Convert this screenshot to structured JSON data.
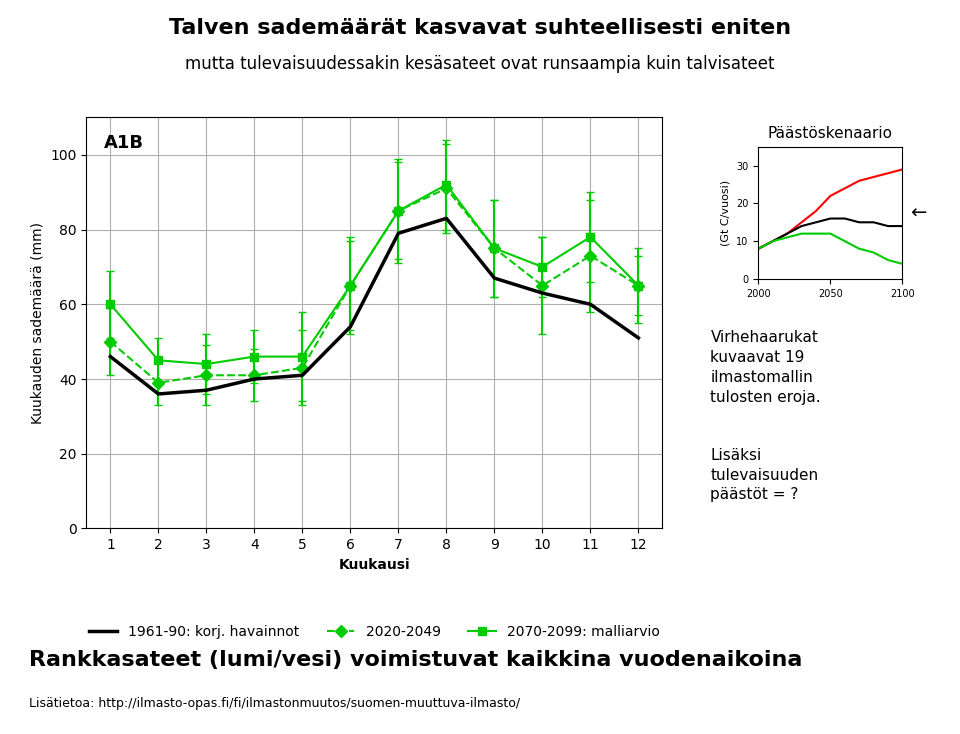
{
  "chart_data": [
    {
      "type": "line",
      "title": "Talven sademäärät kasvavat suhteellisesti eniten",
      "subtitle": "mutta tulevaisuudessakin kesäsateet ovat runsaampia kuin talvisateet",
      "x_label": "Kuukausi",
      "y_label": "Kuukauden sademäärä (mm)",
      "annotations": [
        "A1B",
        "Rankkasateet (lumi/vesi) voimistuvat kaikkina vuodenaikoina",
        "Lisätietoa: http://ilmasto-opas.fi/fi/ilmastonmuutos/suomen-muuttuva-ilmasto/"
      ],
      "x": [
        1,
        2,
        3,
        4,
        5,
        6,
        7,
        8,
        9,
        10,
        11,
        12
      ],
      "xlim": [
        0.5,
        12.5
      ],
      "xticks": [
        1,
        2,
        3,
        4,
        5,
        6,
        7,
        8,
        9,
        10,
        11,
        12
      ],
      "ylim": [
        0,
        110
      ],
      "yticks": [
        0,
        20,
        40,
        60,
        80,
        100
      ],
      "grid": true,
      "legend": "lower center",
      "series": [
        {
          "name": "1961-90: korj. havainnot",
          "color": "#000000",
          "line_style": "solid",
          "values": [
            46,
            36,
            37,
            40,
            41,
            54,
            79,
            83,
            67,
            63,
            60,
            51
          ]
        },
        {
          "name": "2020-2049",
          "color": "#00cc00",
          "line_style": "dashed",
          "marker": "diamond",
          "values": [
            50,
            39,
            41,
            41,
            43,
            65,
            85,
            91,
            75,
            65,
            73,
            65
          ],
          "yerr_low": [
            9,
            6,
            8,
            7,
            10,
            13,
            14,
            12,
            13,
            13,
            15,
            10
          ],
          "yerr_high": [
            9,
            6,
            8,
            7,
            10,
            13,
            14,
            12,
            13,
            13,
            15,
            10
          ]
        },
        {
          "name": "2070-2099: malliarvio",
          "color": "#00cc00",
          "line_style": "solid",
          "marker": "square",
          "values": [
            60,
            45,
            44,
            46,
            46,
            65,
            85,
            92,
            75,
            70,
            78,
            65
          ],
          "yerr_low": [
            9,
            6,
            8,
            7,
            12,
            12,
            13,
            12,
            13,
            8,
            12,
            8
          ],
          "yerr_high": [
            9,
            6,
            8,
            7,
            12,
            12,
            13,
            12,
            13,
            8,
            12,
            8
          ]
        }
      ]
    },
    {
      "type": "line",
      "title": "Päästöskenaario",
      "y_label": "(Gt C/vuosi)",
      "annotations": [
        "←",
        "Virhehaarukat\nkuvaavat 19\nilmastomallin\ntulosten eroja.",
        "Lisäksi\ntulevaisuuden\npäästöt = ?"
      ],
      "x": [
        2000,
        2010,
        2020,
        2030,
        2040,
        2050,
        2060,
        2070,
        2080,
        2090,
        2100
      ],
      "xlim": [
        2000,
        2100
      ],
      "xticks": [
        2000,
        2050,
        2100
      ],
      "ylim": [
        0,
        35
      ],
      "yticks": [
        0,
        10,
        20,
        30
      ],
      "grid": false,
      "series": [
        {
          "color": "red",
          "values": [
            8,
            10,
            12,
            15,
            18,
            22,
            24,
            26,
            27,
            28,
            29
          ]
        },
        {
          "color": "black",
          "values": [
            8,
            10,
            12,
            14,
            15,
            16,
            16,
            15,
            15,
            14,
            14
          ]
        },
        {
          "color": "#00cc00",
          "values": [
            8,
            10,
            11,
            12,
            12,
            12,
            10,
            8,
            7,
            5,
            4
          ]
        }
      ]
    }
  ]
}
